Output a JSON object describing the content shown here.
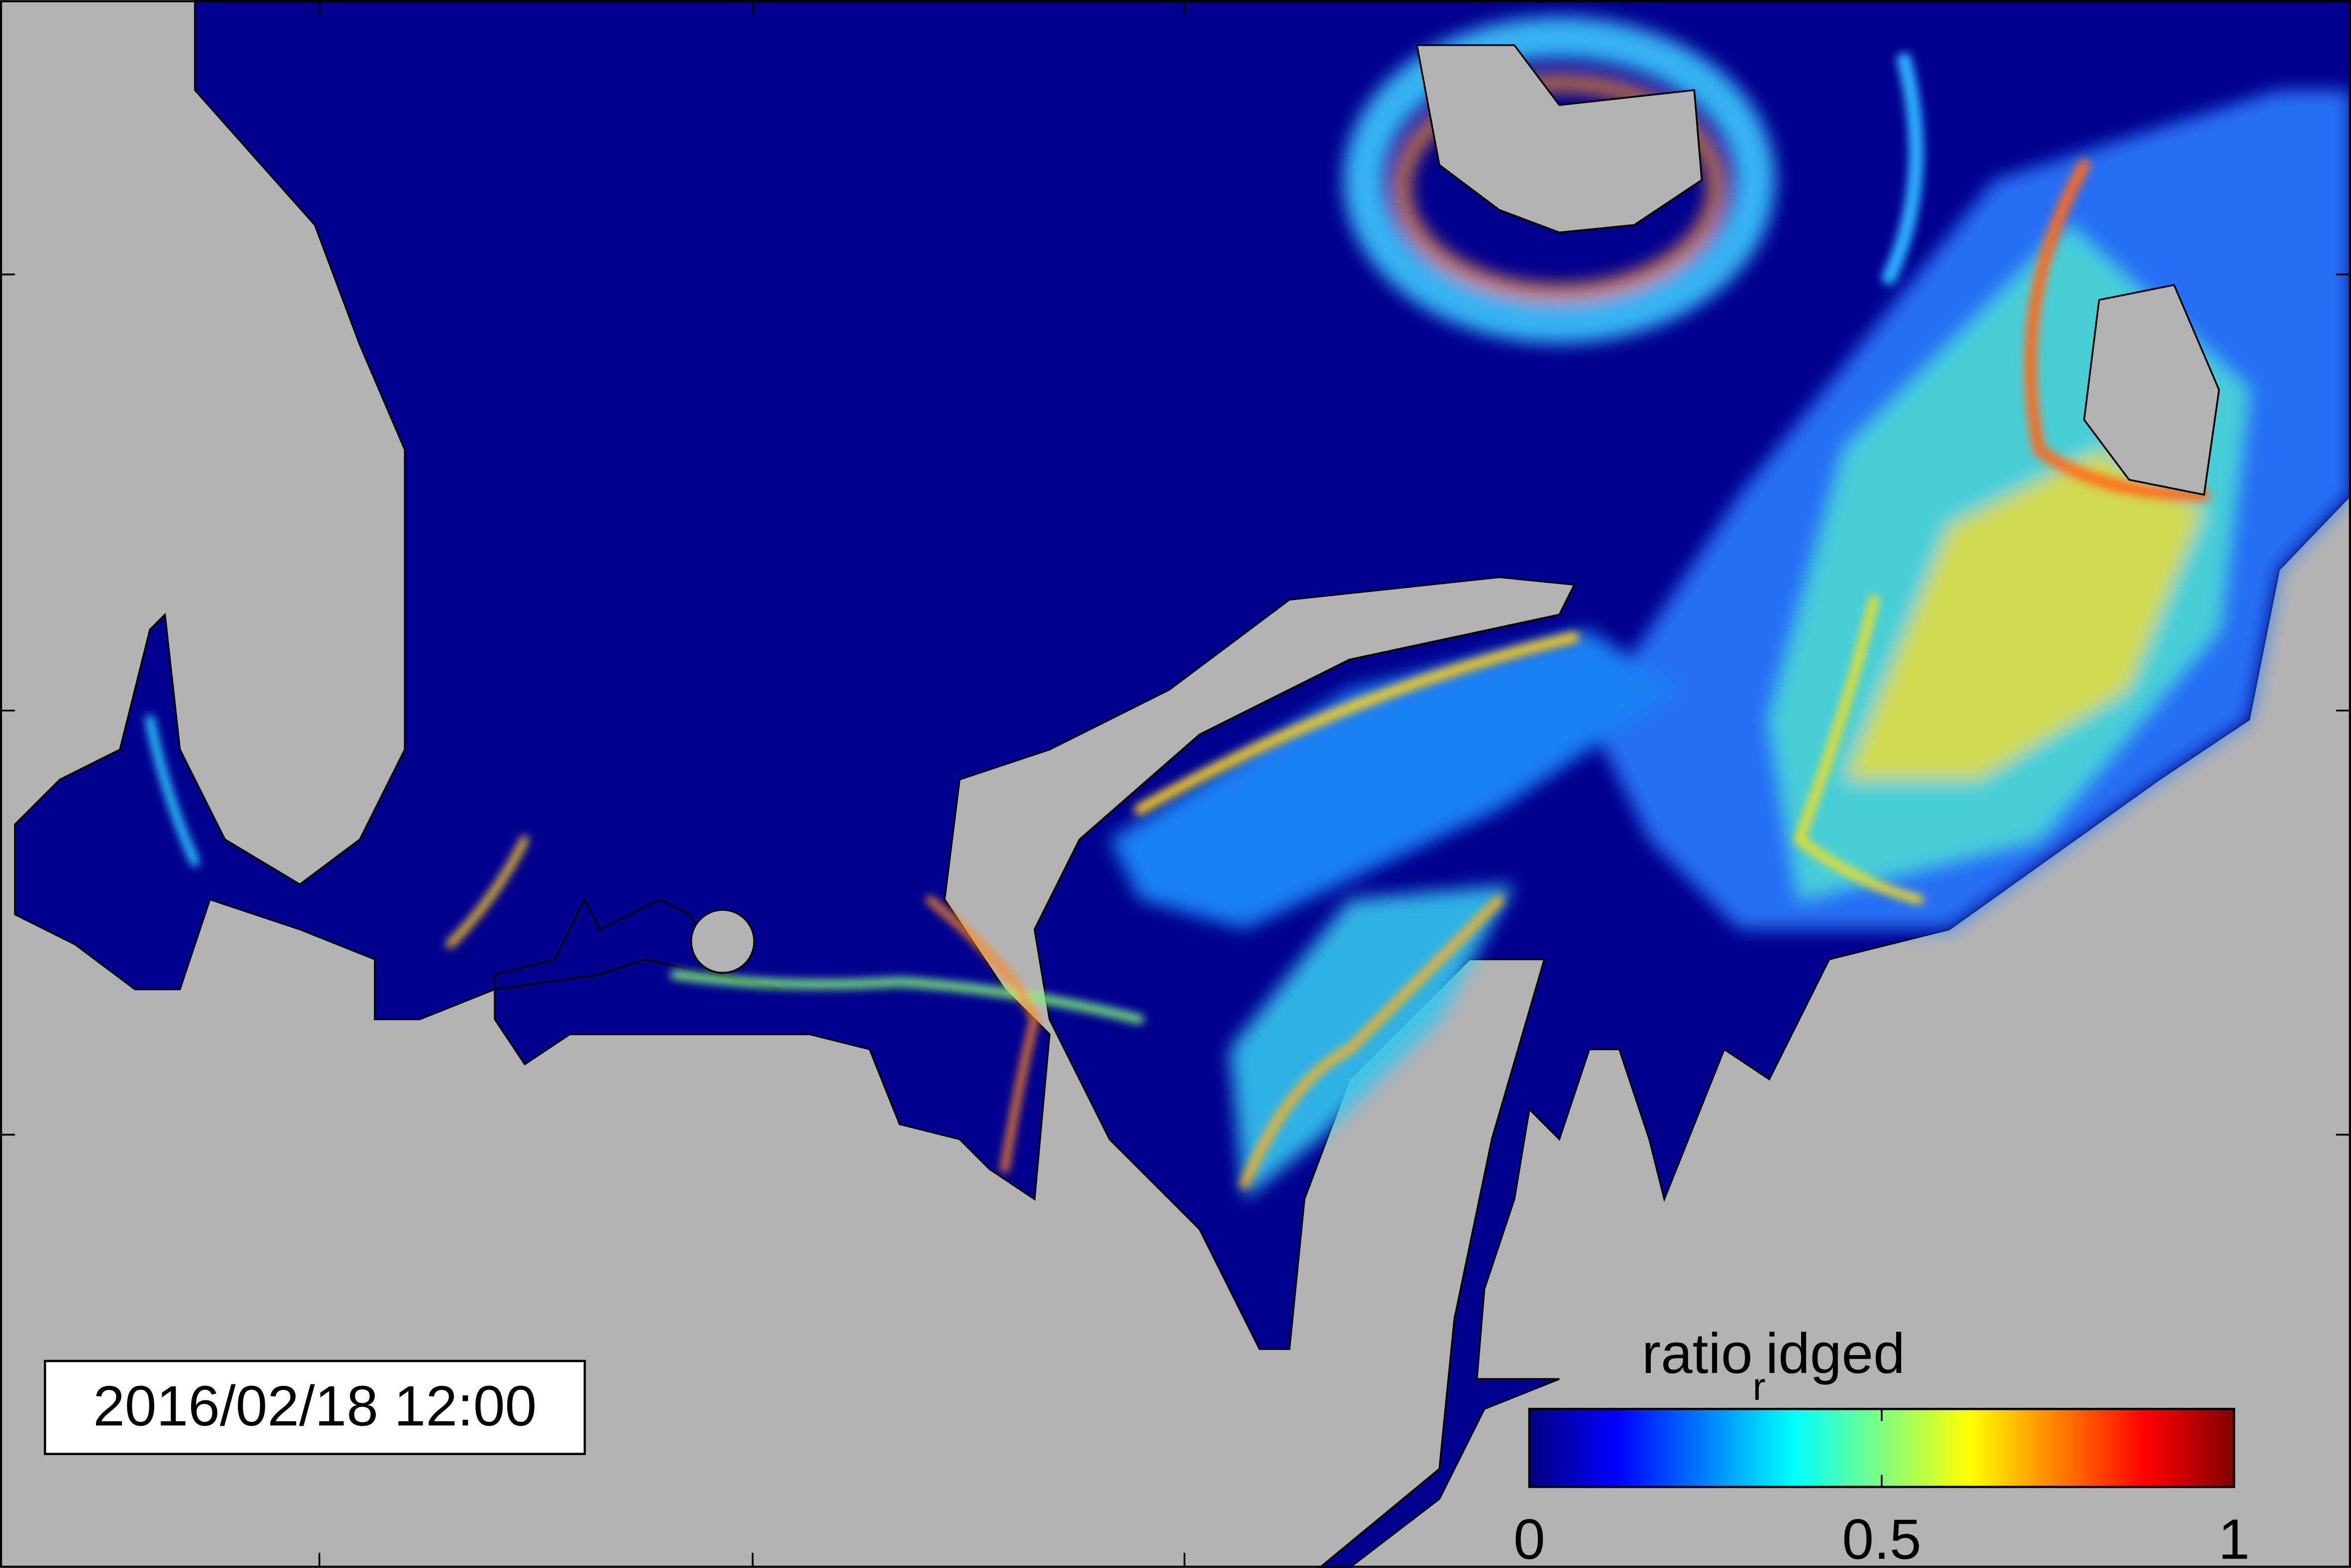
{
  "map": {
    "timestamp": "2016/02/18 12:00",
    "colorbar": {
      "label": {
        "main": "ratio",
        "subscript": "r",
        "rest": "idged"
      },
      "colormap": "jet",
      "lim": [
        0,
        1
      ],
      "ticks": [
        0,
        0.5,
        1
      ]
    },
    "land_color": "#b3b3b3",
    "sea_color": "#00008f"
  }
}
